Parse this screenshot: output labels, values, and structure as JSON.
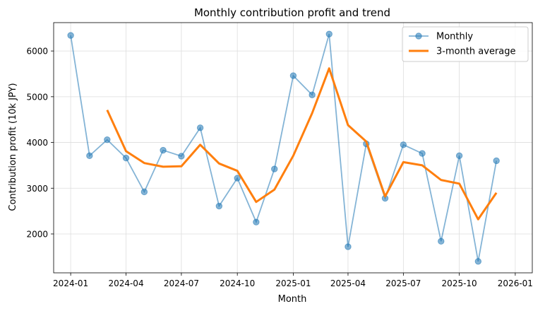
{
  "chart_data": {
    "type": "line",
    "title": "Monthly contribution profit and trend",
    "xlabel": "Month",
    "ylabel": "Contribution profit (10k JPY)",
    "ylim": [
      1150,
      6620
    ],
    "xlim": [
      "2023-12-04",
      "2026-01-29"
    ],
    "grid": true,
    "legend_position": "top-right",
    "x_ticks": [
      "2024-01",
      "2024-04",
      "2024-07",
      "2024-10",
      "2025-01",
      "2025-04",
      "2025-07",
      "2025-10",
      "2026-01"
    ],
    "y_ticks": [
      2000,
      3000,
      4000,
      5000,
      6000
    ],
    "x": [
      "2024-01",
      "2024-02",
      "2024-03",
      "2024-04",
      "2024-05",
      "2024-06",
      "2024-07",
      "2024-08",
      "2024-09",
      "2024-10",
      "2024-11",
      "2024-12",
      "2025-01",
      "2025-02",
      "2025-03",
      "2025-04",
      "2025-05",
      "2025-06",
      "2025-07",
      "2025-08",
      "2025-09",
      "2025-10",
      "2025-11",
      "2025-12"
    ],
    "series": [
      {
        "name": "Monthly",
        "color": "#1f77b4",
        "values": [
          6340,
          3710,
          4060,
          3660,
          2920,
          3830,
          3700,
          4320,
          2610,
          3220,
          2260,
          3420,
          5460,
          5040,
          6370,
          1720,
          3970,
          2780,
          3950,
          3760,
          1840,
          3710,
          1400,
          3600
        ]
      },
      {
        "name": "3-month average",
        "color": "#ff7f0e",
        "values": [
          null,
          null,
          4710,
          3810,
          3550,
          3470,
          3480,
          3950,
          3540,
          3380,
          2700,
          2970,
          3710,
          4640,
          5620,
          4380,
          4020,
          2820,
          3570,
          3500,
          3180,
          3100,
          2320,
          2900
        ]
      }
    ]
  }
}
